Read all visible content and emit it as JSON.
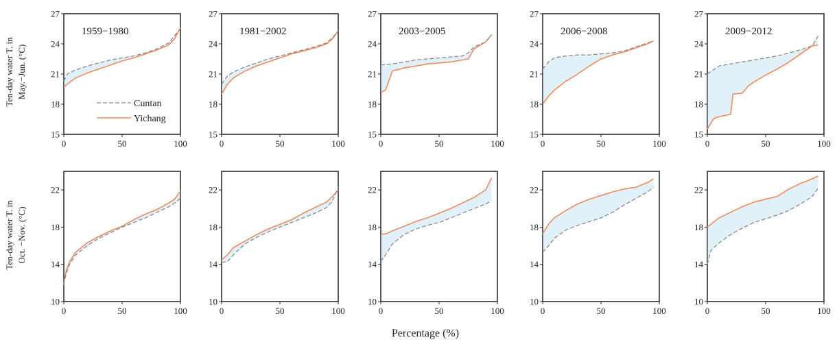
{
  "figure": {
    "xlabel": "Percentage (%)",
    "row_ylabels": [
      [
        "Ten-day water T. in",
        "May.−Jun. (°C)"
      ],
      [
        "Ten-day water T. in",
        "Oct. −Nov. (°C)"
      ]
    ],
    "legend": [
      "Cuntan",
      "Yichang"
    ],
    "colors": {
      "Cuntan": "#8a8a8a",
      "Cuntan_shade": "#a8d6ee",
      "Yichang": "#f08a5d",
      "axis": "#222222"
    }
  },
  "chart_data": [
    {
      "type": "line",
      "row": 0,
      "col": 0,
      "title": "1959−1980",
      "xlim": [
        0,
        100
      ],
      "ylim": [
        15,
        27
      ],
      "xticks": [
        0,
        50,
        100
      ],
      "yticks": [
        15,
        18,
        21,
        24,
        27
      ],
      "legend": "inside-left",
      "series": [
        {
          "name": "Cuntan",
          "x": [
            0,
            3,
            10,
            20,
            30,
            40,
            50,
            60,
            70,
            80,
            90,
            95,
            100
          ],
          "y": [
            20.3,
            21.0,
            21.4,
            21.8,
            22.1,
            22.4,
            22.6,
            22.8,
            23.1,
            23.5,
            24.1,
            24.8,
            25.5
          ]
        },
        {
          "name": "Yichang",
          "x": [
            0,
            3,
            10,
            20,
            30,
            40,
            50,
            60,
            70,
            80,
            90,
            95,
            100
          ],
          "y": [
            19.7,
            20.0,
            20.6,
            21.1,
            21.5,
            21.9,
            22.3,
            22.6,
            23.0,
            23.4,
            23.9,
            24.5,
            25.6
          ]
        }
      ]
    },
    {
      "type": "line",
      "row": 0,
      "col": 1,
      "title": "1981−2002",
      "xlim": [
        0,
        100
      ],
      "ylim": [
        15,
        27
      ],
      "xticks": [
        0,
        50,
        100
      ],
      "yticks": [
        15,
        18,
        21,
        24,
        27
      ],
      "series": [
        {
          "name": "Cuntan",
          "x": [
            0,
            5,
            10,
            20,
            30,
            40,
            50,
            60,
            70,
            80,
            90,
            95,
            100
          ],
          "y": [
            20.0,
            20.8,
            21.2,
            21.7,
            22.1,
            22.5,
            22.8,
            23.1,
            23.4,
            23.7,
            24.1,
            24.6,
            25.3
          ]
        },
        {
          "name": "Yichang",
          "x": [
            0,
            5,
            10,
            20,
            30,
            40,
            50,
            60,
            70,
            80,
            90,
            95,
            100
          ],
          "y": [
            19.0,
            20.0,
            20.6,
            21.3,
            21.8,
            22.2,
            22.6,
            23.0,
            23.3,
            23.6,
            24.0,
            24.5,
            25.3
          ]
        }
      ]
    },
    {
      "type": "line",
      "row": 0,
      "col": 2,
      "title": "2003−2005",
      "xlim": [
        0,
        100
      ],
      "ylim": [
        15,
        27
      ],
      "xticks": [
        0,
        50,
        100
      ],
      "yticks": [
        15,
        18,
        21,
        24,
        27
      ],
      "series": [
        {
          "name": "Cuntan",
          "x": [
            0,
            10,
            20,
            30,
            40,
            50,
            60,
            70,
            75,
            80,
            90,
            95
          ],
          "y": [
            21.9,
            22.0,
            22.2,
            22.4,
            22.5,
            22.6,
            22.7,
            22.8,
            23.1,
            23.7,
            24.2,
            24.9
          ]
        },
        {
          "name": "Yichang",
          "x": [
            0,
            4,
            10,
            20,
            30,
            40,
            50,
            60,
            70,
            75,
            80,
            90,
            95
          ],
          "y": [
            19.2,
            19.4,
            21.3,
            21.6,
            21.8,
            22.0,
            22.1,
            22.2,
            22.4,
            22.5,
            23.5,
            24.2,
            24.9
          ]
        }
      ]
    },
    {
      "type": "line",
      "row": 0,
      "col": 3,
      "title": "2006−2008",
      "xlim": [
        0,
        100
      ],
      "ylim": [
        15,
        27
      ],
      "xticks": [
        0,
        50,
        100
      ],
      "yticks": [
        15,
        18,
        21,
        24,
        27
      ],
      "series": [
        {
          "name": "Cuntan",
          "x": [
            0,
            5,
            10,
            20,
            30,
            40,
            50,
            60,
            70,
            80,
            90,
            95
          ],
          "y": [
            21.5,
            22.2,
            22.6,
            22.8,
            22.9,
            22.9,
            23.0,
            23.1,
            23.3,
            23.7,
            24.1,
            24.3
          ]
        },
        {
          "name": "Yichang",
          "x": [
            0,
            5,
            10,
            20,
            30,
            40,
            50,
            60,
            70,
            80,
            90,
            95
          ],
          "y": [
            18.0,
            18.8,
            19.4,
            20.3,
            21.0,
            21.8,
            22.5,
            22.9,
            23.2,
            23.6,
            24.0,
            24.3
          ]
        }
      ]
    },
    {
      "type": "line",
      "row": 0,
      "col": 4,
      "title": "2009−2012",
      "xlim": [
        0,
        100
      ],
      "ylim": [
        15,
        27
      ],
      "xticks": [
        0,
        50,
        100
      ],
      "yticks": [
        15,
        18,
        21,
        24,
        27
      ],
      "series": [
        {
          "name": "Cuntan",
          "x": [
            0,
            5,
            10,
            20,
            30,
            40,
            50,
            60,
            70,
            80,
            90,
            95
          ],
          "y": [
            21.0,
            21.4,
            21.8,
            22.0,
            22.2,
            22.4,
            22.6,
            22.8,
            23.1,
            23.4,
            23.8,
            24.8
          ]
        },
        {
          "name": "Yichang",
          "x": [
            0,
            5,
            8,
            20,
            22,
            30,
            35,
            40,
            50,
            60,
            70,
            80,
            90,
            95
          ],
          "y": [
            15.5,
            16.5,
            16.7,
            17.0,
            19.0,
            19.1,
            19.8,
            20.2,
            20.9,
            21.5,
            22.2,
            23.0,
            23.8,
            23.9
          ]
        }
      ]
    },
    {
      "type": "line",
      "row": 1,
      "col": 0,
      "title": "",
      "xlim": [
        0,
        100
      ],
      "ylim": [
        10,
        24
      ],
      "xticks": [
        0,
        50,
        100
      ],
      "yticks": [
        10,
        14,
        18,
        22
      ],
      "series": [
        {
          "name": "Cuntan",
          "x": [
            0,
            2,
            5,
            10,
            20,
            30,
            40,
            50,
            60,
            70,
            80,
            90,
            95,
            100
          ],
          "y": [
            11.8,
            13.0,
            14.0,
            15.0,
            16.0,
            16.8,
            17.4,
            18.0,
            18.5,
            19.0,
            19.6,
            20.2,
            20.6,
            21.1
          ]
        },
        {
          "name": "Yichang",
          "x": [
            0,
            2,
            5,
            10,
            20,
            30,
            40,
            50,
            60,
            70,
            80,
            90,
            95,
            100
          ],
          "y": [
            12.0,
            13.3,
            14.3,
            15.3,
            16.3,
            17.0,
            17.6,
            18.1,
            18.8,
            19.4,
            19.9,
            20.6,
            21.0,
            21.9
          ]
        }
      ]
    },
    {
      "type": "line",
      "row": 1,
      "col": 1,
      "title": "",
      "xlim": [
        0,
        100
      ],
      "ylim": [
        10,
        24
      ],
      "xticks": [
        0,
        50,
        100
      ],
      "yticks": [
        10,
        14,
        18,
        22
      ],
      "series": [
        {
          "name": "Cuntan",
          "x": [
            0,
            5,
            10,
            20,
            30,
            40,
            50,
            60,
            70,
            80,
            90,
            95,
            100
          ],
          "y": [
            14.2,
            14.3,
            15.0,
            16.2,
            16.9,
            17.5,
            18.0,
            18.5,
            19.0,
            19.5,
            20.1,
            20.8,
            22.3
          ]
        },
        {
          "name": "Yichang",
          "x": [
            0,
            5,
            10,
            20,
            30,
            40,
            50,
            60,
            70,
            80,
            90,
            95,
            100
          ],
          "y": [
            14.5,
            15.0,
            15.8,
            16.5,
            17.2,
            17.8,
            18.3,
            18.8,
            19.5,
            20.1,
            20.7,
            21.3,
            22.0
          ]
        }
      ]
    },
    {
      "type": "line",
      "row": 1,
      "col": 2,
      "title": "",
      "xlim": [
        0,
        100
      ],
      "ylim": [
        10,
        24
      ],
      "xticks": [
        0,
        50,
        100
      ],
      "yticks": [
        10,
        14,
        18,
        22
      ],
      "series": [
        {
          "name": "Cuntan",
          "x": [
            0,
            5,
            10,
            20,
            30,
            40,
            50,
            60,
            70,
            80,
            90,
            95
          ],
          "y": [
            14.3,
            15.2,
            16.2,
            17.2,
            17.8,
            18.2,
            18.5,
            19.0,
            19.5,
            20.0,
            20.5,
            20.8
          ]
        },
        {
          "name": "Yichang",
          "x": [
            0,
            5,
            10,
            20,
            30,
            40,
            50,
            60,
            70,
            80,
            90,
            95
          ],
          "y": [
            17.2,
            17.3,
            17.6,
            18.1,
            18.6,
            19.0,
            19.5,
            20.0,
            20.6,
            21.2,
            22.0,
            23.3
          ]
        }
      ]
    },
    {
      "type": "line",
      "row": 1,
      "col": 3,
      "title": "",
      "xlim": [
        0,
        100
      ],
      "ylim": [
        10,
        24
      ],
      "xticks": [
        0,
        50,
        100
      ],
      "yticks": [
        10,
        14,
        18,
        22
      ],
      "series": [
        {
          "name": "Cuntan",
          "x": [
            0,
            5,
            10,
            20,
            30,
            40,
            50,
            60,
            70,
            80,
            90,
            95
          ],
          "y": [
            15.3,
            16.0,
            16.8,
            17.7,
            18.2,
            18.6,
            19.0,
            19.6,
            20.4,
            21.1,
            21.8,
            22.3
          ]
        },
        {
          "name": "Yichang",
          "x": [
            0,
            5,
            10,
            20,
            30,
            40,
            50,
            60,
            70,
            80,
            90,
            95
          ],
          "y": [
            17.3,
            18.3,
            19.0,
            19.8,
            20.5,
            21.0,
            21.4,
            21.8,
            22.1,
            22.3,
            22.8,
            23.2
          ]
        }
      ]
    },
    {
      "type": "line",
      "row": 1,
      "col": 4,
      "title": "",
      "xlim": [
        0,
        100
      ],
      "ylim": [
        10,
        24
      ],
      "xticks": [
        0,
        50,
        100
      ],
      "yticks": [
        10,
        14,
        18,
        22
      ],
      "series": [
        {
          "name": "Cuntan",
          "x": [
            0,
            3,
            10,
            20,
            30,
            40,
            50,
            60,
            70,
            80,
            90,
            95
          ],
          "y": [
            14.0,
            15.5,
            16.3,
            17.2,
            17.9,
            18.5,
            18.9,
            19.3,
            19.8,
            20.5,
            21.3,
            22.2
          ]
        },
        {
          "name": "Yichang",
          "x": [
            0,
            5,
            10,
            20,
            30,
            40,
            50,
            60,
            70,
            80,
            90,
            95
          ],
          "y": [
            18.0,
            18.5,
            19.0,
            19.6,
            20.2,
            20.7,
            21.0,
            21.3,
            22.1,
            22.7,
            23.2,
            23.5
          ]
        }
      ]
    }
  ]
}
